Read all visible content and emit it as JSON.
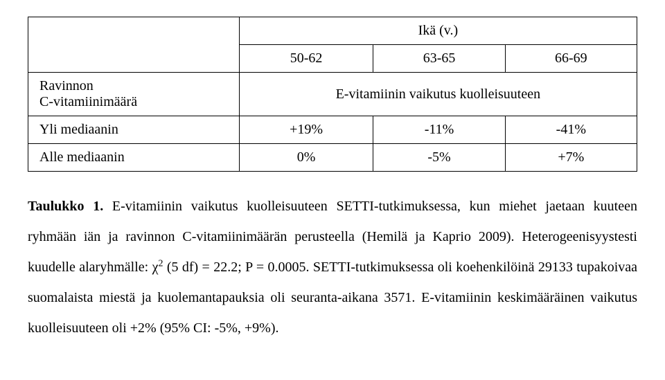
{
  "table": {
    "header_top": "Ikä (v.)",
    "age_groups": [
      "50-62",
      "63-65",
      "66-69"
    ],
    "row1_label_line1": "Ravinnon",
    "row1_label_line2": "C-vitamiinimäärä",
    "subheader": "E-vitamiinin vaikutus kuolleisuuteen",
    "rows": [
      {
        "label": "Yli mediaanin",
        "values": [
          "+19%",
          "-11%",
          "-41%"
        ]
      },
      {
        "label": "Alle mediaanin",
        "values": [
          "0%",
          "-5%",
          "+7%"
        ]
      }
    ]
  },
  "paragraph": {
    "lead_bold": "Taulukko 1.",
    "s1": " E-vitamiinin vaikutus kuolleisuuteen SETTI-tutkimuksessa, kun miehet jaetaan kuuteen ryhmään iän ja ravinnon C-vitamiinimäärän perusteella (Hemilä ja Kaprio 2009). Heterogeenisyystesti kuudelle alaryhmälle: χ",
    "sup": "2",
    "s2": " (5 df) = 22.2; P = 0.0005. SETTI-tutkimuksessa oli koehenkilöinä 29133 tupakoivaa suomalaista miestä ja kuolemantapauksia oli seuranta-aikana 3571. E-vitamiinin keskimääräinen vaikutus kuolleisuuteen oli +2% (95% CI: -5%, +9%)."
  }
}
